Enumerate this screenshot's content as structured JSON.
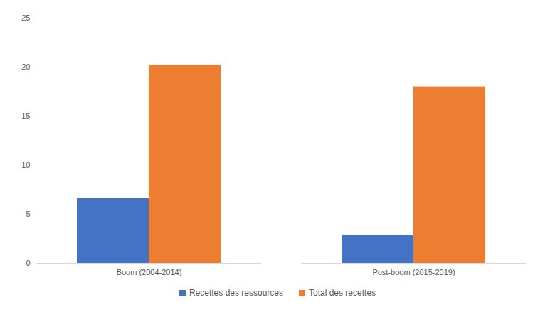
{
  "chart_data": {
    "type": "bar",
    "categories": [
      "Boom (2004-2014)",
      "Post-boom (2015-2019)"
    ],
    "series": [
      {
        "name": "Recettes des ressources",
        "color": "#4472c4",
        "values": [
          6.6,
          2.9
        ]
      },
      {
        "name": "Total des recettes",
        "color": "#ed7d31",
        "values": [
          20.2,
          18.0
        ]
      }
    ],
    "ylim": [
      0,
      25
    ],
    "yticks": [
      0,
      5,
      10,
      15,
      20,
      25
    ],
    "grid": false,
    "legend": "bottom"
  }
}
